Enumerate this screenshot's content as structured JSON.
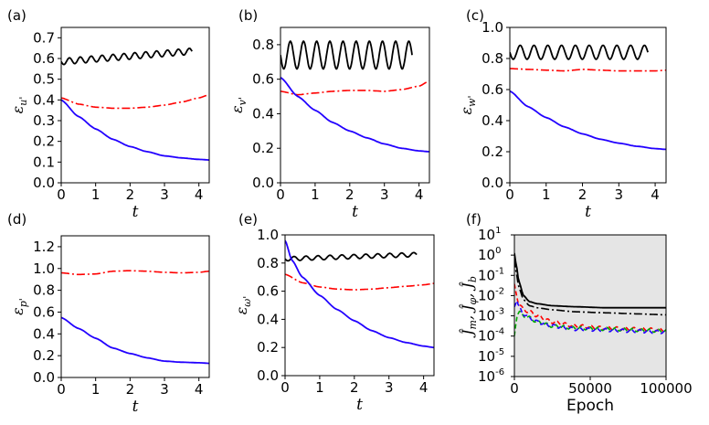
{
  "chart_data": [
    {
      "panel_label": "(a)",
      "type": "line",
      "xlabel": "t",
      "ylabel": "ε_{u'}",
      "xlim": [
        0,
        4.3
      ],
      "ylim": [
        0.0,
        0.75
      ],
      "xticks": [
        "0",
        "1",
        "2",
        "3",
        "4"
      ],
      "yticks": [
        "0.0",
        "0.1",
        "0.2",
        "0.3",
        "0.4",
        "0.5",
        "0.6",
        "0.7"
      ],
      "series": [
        {
          "color": "#000000",
          "style": "solid",
          "oscillating": true,
          "x": [
            0,
            3.8
          ],
          "y": [
            0.585,
            0.635
          ],
          "amplitude": 0.015,
          "periods": 12
        },
        {
          "color": "#ff0000",
          "style": "dashdot",
          "x": [
            0,
            0.5,
            1,
            1.5,
            2,
            2.5,
            3,
            3.5,
            4,
            4.3
          ],
          "y": [
            0.41,
            0.38,
            0.365,
            0.36,
            0.36,
            0.365,
            0.375,
            0.39,
            0.41,
            0.425
          ]
        },
        {
          "color": "#2200ff",
          "style": "solid",
          "x": [
            0,
            0.5,
            1,
            1.5,
            2,
            2.5,
            3,
            3.5,
            4,
            4.3
          ],
          "y": [
            0.4,
            0.32,
            0.26,
            0.21,
            0.175,
            0.15,
            0.13,
            0.12,
            0.113,
            0.11
          ]
        }
      ]
    },
    {
      "panel_label": "(b)",
      "type": "line",
      "xlabel": "t",
      "ylabel": "ε_{v'}",
      "xlim": [
        0,
        4.3
      ],
      "ylim": [
        0.0,
        0.9
      ],
      "xticks": [
        "0",
        "1",
        "2",
        "3",
        "4"
      ],
      "yticks": [
        "0.0",
        "0.2",
        "0.4",
        "0.6",
        "0.8"
      ],
      "series": [
        {
          "color": "#000000",
          "style": "solid",
          "oscillating": true,
          "x": [
            0,
            3.8
          ],
          "y": [
            0.74,
            0.74
          ],
          "amplitude": 0.08,
          "periods": 10
        },
        {
          "color": "#ff0000",
          "style": "dashdot",
          "x": [
            0,
            0.5,
            1,
            1.5,
            2,
            2.5,
            3,
            3.5,
            4,
            4.3
          ],
          "y": [
            0.53,
            0.51,
            0.52,
            0.53,
            0.535,
            0.535,
            0.53,
            0.54,
            0.56,
            0.59
          ]
        },
        {
          "color": "#2200ff",
          "style": "solid",
          "x": [
            0,
            0.5,
            1,
            1.5,
            2,
            2.5,
            3,
            3.5,
            4,
            4.3
          ],
          "y": [
            0.61,
            0.5,
            0.42,
            0.35,
            0.3,
            0.26,
            0.225,
            0.2,
            0.185,
            0.18
          ]
        }
      ]
    },
    {
      "panel_label": "(c)",
      "type": "line",
      "xlabel": "t",
      "ylabel": "ε_{w'}",
      "xlim": [
        0,
        4.3
      ],
      "ylim": [
        0.0,
        1.0
      ],
      "xticks": [
        "0",
        "1",
        "2",
        "3",
        "4"
      ],
      "yticks": [
        "0.0",
        "0.2",
        "0.4",
        "0.6",
        "0.8",
        "1.0"
      ],
      "series": [
        {
          "color": "#000000",
          "style": "solid",
          "oscillating": true,
          "x": [
            0,
            3.8
          ],
          "y": [
            0.84,
            0.84
          ],
          "amplitude": 0.045,
          "periods": 10
        },
        {
          "color": "#ff0000",
          "style": "dashdot",
          "x": [
            0,
            0.5,
            1,
            1.5,
            2,
            2.5,
            3,
            3.5,
            4,
            4.3
          ],
          "y": [
            0.735,
            0.73,
            0.725,
            0.72,
            0.73,
            0.725,
            0.72,
            0.72,
            0.72,
            0.725
          ]
        },
        {
          "color": "#2200ff",
          "style": "solid",
          "x": [
            0,
            0.5,
            1,
            1.5,
            2,
            2.5,
            3,
            3.5,
            4,
            4.3
          ],
          "y": [
            0.59,
            0.49,
            0.42,
            0.36,
            0.315,
            0.28,
            0.255,
            0.235,
            0.22,
            0.215
          ]
        }
      ]
    },
    {
      "panel_label": "(d)",
      "type": "line",
      "xlabel": "t",
      "ylabel": "ε_{p'}",
      "xlim": [
        0,
        4.3
      ],
      "ylim": [
        0.0,
        1.3
      ],
      "xticks": [
        "0",
        "1",
        "2",
        "3",
        "4"
      ],
      "yticks": [
        "0.0",
        "0.2",
        "0.4",
        "0.6",
        "0.8",
        "1.0",
        "1.2"
      ],
      "series": [
        {
          "color": "#ff0000",
          "style": "dashdot",
          "x": [
            0,
            0.5,
            1,
            1.5,
            2,
            2.5,
            3,
            3.5,
            4,
            4.3
          ],
          "y": [
            0.96,
            0.945,
            0.95,
            0.975,
            0.98,
            0.975,
            0.965,
            0.96,
            0.965,
            0.975
          ]
        },
        {
          "color": "#2200ff",
          "style": "solid",
          "x": [
            0,
            0.5,
            1,
            1.5,
            2,
            2.5,
            3,
            3.5,
            4,
            4.3
          ],
          "y": [
            0.55,
            0.45,
            0.36,
            0.27,
            0.22,
            0.18,
            0.15,
            0.14,
            0.135,
            0.13
          ]
        }
      ]
    },
    {
      "panel_label": "(e)",
      "type": "line",
      "xlabel": "t",
      "ylabel": "ε_{ω'}",
      "xlim": [
        0,
        4.3
      ],
      "ylim": [
        0.0,
        1.0
      ],
      "xticks": [
        "0",
        "1",
        "2",
        "3",
        "4"
      ],
      "yticks": [
        "0.0",
        "0.2",
        "0.4",
        "0.6",
        "0.8",
        "1.0"
      ],
      "series": [
        {
          "color": "#000000",
          "style": "solid",
          "oscillating": true,
          "x": [
            0,
            3.8
          ],
          "y": [
            0.83,
            0.86
          ],
          "amplitude": 0.015,
          "periods": 11
        },
        {
          "color": "#ff0000",
          "style": "dashdot",
          "x": [
            0,
            0.5,
            1,
            1.5,
            2,
            2.5,
            3,
            3.5,
            4,
            4.3
          ],
          "y": [
            0.72,
            0.66,
            0.63,
            0.615,
            0.61,
            0.615,
            0.625,
            0.635,
            0.645,
            0.655
          ]
        },
        {
          "color": "#2200ff",
          "style": "solid",
          "x": [
            0,
            0.2,
            0.5,
            1,
            1.5,
            2,
            2.5,
            3,
            3.5,
            4,
            4.3
          ],
          "y": [
            0.96,
            0.82,
            0.7,
            0.57,
            0.47,
            0.39,
            0.32,
            0.27,
            0.235,
            0.21,
            0.2
          ]
        }
      ]
    },
    {
      "panel_label": "(f)",
      "type": "line",
      "xlabel": "Epoch",
      "ylabel": "Ĵ_m, Ĵ_φ, Ĵ_b",
      "log_y": true,
      "background": "#e5e5e5",
      "xlim": [
        0,
        100000
      ],
      "ylim_log10": [
        -6,
        1
      ],
      "xticks": [
        "0",
        "50000",
        "100000"
      ],
      "yticks": [
        "10^1",
        "10^0",
        "10^-1",
        "10^-2",
        "10^-3",
        "10^-4",
        "10^-5",
        "10^-6"
      ],
      "series": [
        {
          "color": "#000000",
          "style": "solid",
          "x": [
            0,
            1000,
            3000,
            6000,
            10000,
            15000,
            25000,
            40000,
            60000,
            80000,
            100000
          ],
          "log10_y": [
            0.1,
            -0.4,
            -1.3,
            -2.0,
            -2.3,
            -2.4,
            -2.5,
            -2.55,
            -2.6,
            -2.6,
            -2.6
          ]
        },
        {
          "color": "#000000",
          "style": "dashdot",
          "x": [
            0,
            1000,
            3000,
            6000,
            10000,
            15000,
            25000,
            40000,
            60000,
            80000,
            100000
          ],
          "log10_y": [
            -0.2,
            -0.8,
            -1.6,
            -2.2,
            -2.5,
            -2.6,
            -2.7,
            -2.8,
            -2.85,
            -2.9,
            -2.95
          ]
        },
        {
          "color": "#ff0000",
          "style": "dashed",
          "x": [
            0,
            1500,
            3000,
            6000,
            10000,
            15000,
            25000,
            40000,
            60000,
            80000,
            100000
          ],
          "log10_y": [
            -1.5,
            -2.0,
            -2.4,
            -2.7,
            -2.8,
            -3.0,
            -3.3,
            -3.5,
            -3.6,
            -3.65,
            -3.7
          ]
        },
        {
          "color": "#00aa00",
          "style": "dashed",
          "x": [
            0,
            1500,
            3000,
            6000,
            10000,
            15000,
            25000,
            40000,
            60000,
            80000,
            100000
          ],
          "log10_y": [
            -4.0,
            -3.0,
            -2.8,
            -3.0,
            -3.1,
            -3.3,
            -3.5,
            -3.6,
            -3.65,
            -3.7,
            -3.75
          ]
        },
        {
          "color": "#2200ff",
          "style": "dashed",
          "x": [
            0,
            1500,
            3000,
            6000,
            10000,
            15000,
            25000,
            40000,
            60000,
            80000,
            100000
          ],
          "log10_y": [
            -2.5,
            -2.2,
            -2.6,
            -2.9,
            -3.1,
            -3.3,
            -3.5,
            -3.65,
            -3.7,
            -3.75,
            -3.8
          ]
        }
      ]
    }
  ]
}
